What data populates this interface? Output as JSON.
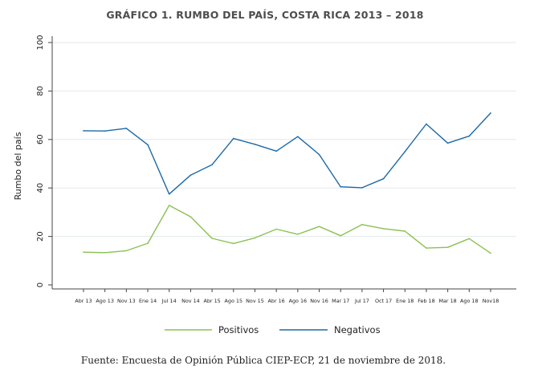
{
  "chart_data": {
    "type": "line",
    "title": "GRÁFICO 1. RUMBO DEL PAÍS, COSTA RICA 2013 – 2018",
    "ylabel": "Rumbo del país",
    "xlabel": "",
    "ylim": [
      0,
      100
    ],
    "yticks": [
      0,
      20,
      40,
      60,
      80,
      100
    ],
    "grid": true,
    "legend_position": "bottom",
    "categories": [
      "Abr 13",
      "Ago 13",
      "Nov 13",
      "Ene 14",
      "Jul 14",
      "Nov 14",
      "Abr 15",
      "Ago 15",
      "Nov 15",
      "Abr 16",
      "Ago 16",
      "Nov 16",
      "Mar 17",
      "Jul 17",
      "Oct 17",
      "Ene 18",
      "Feb 18",
      "Mar 18",
      "Ago 18",
      "Nov18"
    ],
    "series": [
      {
        "name": "Positivos",
        "color": "#8cc152",
        "values": [
          13.5,
          13.3,
          14.1,
          17.2,
          32.8,
          28.1,
          19.2,
          17.1,
          19.4,
          23.0,
          20.9,
          24.1,
          20.3,
          24.9,
          23.2,
          22.2,
          15.2,
          15.5,
          19.1,
          13.1
        ]
      },
      {
        "name": "Negativos",
        "color": "#1d6aa5",
        "values": [
          63.6,
          63.5,
          64.6,
          57.8,
          37.5,
          45.3,
          49.6,
          60.4,
          58.0,
          55.2,
          61.2,
          53.8,
          40.5,
          40.1,
          43.8,
          55.0,
          66.4,
          58.5,
          61.4,
          70.9
        ]
      }
    ]
  },
  "source": "Fuente: Encuesta de Opinión Pública CIEP-ECP, 21 de noviembre de 2018."
}
